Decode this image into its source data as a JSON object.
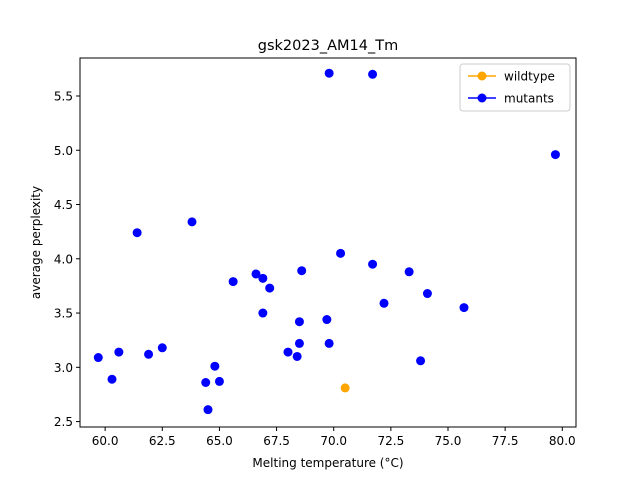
{
  "chart_data": {
    "type": "scatter",
    "title": "gsk2023_AM14_Tm",
    "xlabel": "Melting temperature (°C)",
    "ylabel": "average perplexity",
    "xlim": [
      58.9,
      80.6
    ],
    "ylim": [
      2.45,
      5.85
    ],
    "xticks": [
      "60.0",
      "62.5",
      "65.0",
      "67.5",
      "70.0",
      "72.5",
      "75.0",
      "77.5",
      "80.0"
    ],
    "yticks": [
      "2.5",
      "3.0",
      "3.5",
      "4.0",
      "4.5",
      "5.0",
      "5.5"
    ],
    "grid": false,
    "legend_position": "top-right",
    "series": [
      {
        "name": "wildtype",
        "color": "#ffa500",
        "points": [
          [
            70.5,
            2.81
          ]
        ]
      },
      {
        "name": "mutants",
        "color": "#0000ff",
        "points": [
          [
            69.8,
            5.71
          ],
          [
            71.7,
            5.7
          ],
          [
            79.7,
            4.96
          ],
          [
            61.4,
            4.24
          ],
          [
            63.8,
            4.34
          ],
          [
            70.3,
            4.05
          ],
          [
            71.7,
            3.95
          ],
          [
            73.3,
            3.88
          ],
          [
            68.6,
            3.89
          ],
          [
            66.6,
            3.86
          ],
          [
            66.9,
            3.82
          ],
          [
            65.6,
            3.79
          ],
          [
            67.2,
            3.73
          ],
          [
            74.1,
            3.68
          ],
          [
            72.2,
            3.59
          ],
          [
            75.7,
            3.55
          ],
          [
            66.9,
            3.5
          ],
          [
            69.7,
            3.44
          ],
          [
            68.5,
            3.42
          ],
          [
            69.8,
            3.22
          ],
          [
            68.5,
            3.22
          ],
          [
            62.5,
            3.18
          ],
          [
            60.6,
            3.14
          ],
          [
            68.0,
            3.14
          ],
          [
            61.9,
            3.12
          ],
          [
            68.4,
            3.1
          ],
          [
            59.7,
            3.09
          ],
          [
            73.8,
            3.06
          ],
          [
            64.8,
            3.01
          ],
          [
            60.3,
            2.89
          ],
          [
            65.0,
            2.87
          ],
          [
            64.4,
            2.86
          ],
          [
            64.5,
            2.61
          ]
        ]
      }
    ]
  }
}
